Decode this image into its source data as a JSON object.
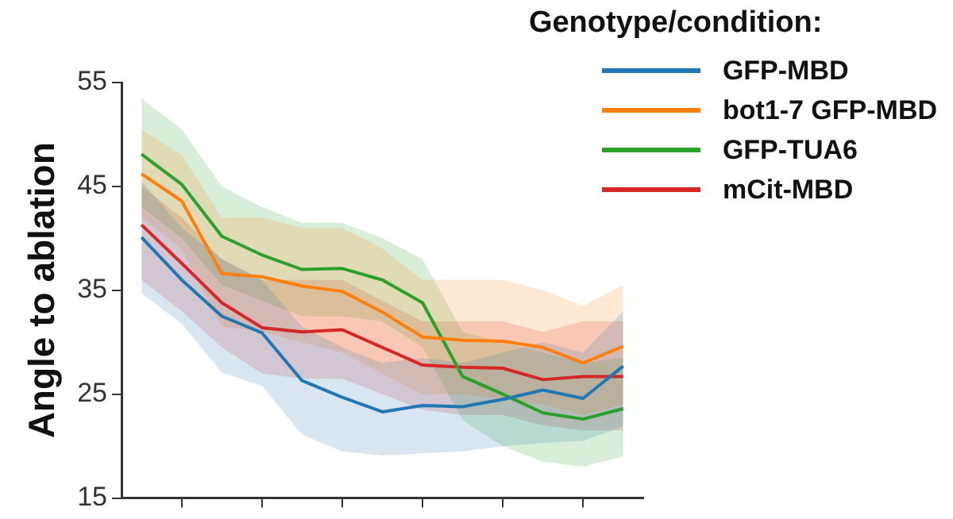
{
  "chart_data": {
    "type": "line",
    "ylabel": "Angle to ablation",
    "legend_title": "Genotype/condition:",
    "legend": "top right",
    "grid": false,
    "marker": "none",
    "line_style": "solid",
    "categories": [
      null,
      null,
      null,
      null,
      null,
      null,
      null,
      null,
      null,
      null,
      null,
      null,
      null
    ],
    "ylim": [
      15,
      55
    ],
    "yticks": [
      15,
      25,
      35,
      45,
      55
    ],
    "series": [
      {
        "name": "GFP-MBD",
        "color": "#1f77b4",
        "values": [
          40.1,
          36,
          32.5,
          30.9,
          26.3,
          24.7,
          23.3,
          23.9,
          23.8,
          24.5,
          25.4,
          24.6,
          27.7
        ],
        "lower": [
          34.7,
          31.8,
          27.1,
          25.8,
          21.1,
          19.5,
          19.1,
          19.3,
          19.5,
          20,
          20.3,
          20.5,
          21.9
        ],
        "upper": [
          45.5,
          41,
          38,
          36,
          31.5,
          29.5,
          28,
          28.5,
          28,
          29,
          30,
          29,
          33
        ]
      },
      {
        "name": "bot1-7 GFP-MBD",
        "color": "#ff7f0e",
        "values": [
          46.2,
          43.6,
          36.6,
          36.3,
          35.4,
          34.9,
          32.9,
          30.5,
          30.2,
          30.1,
          29.5,
          28,
          29.6
        ],
        "lower": [
          42,
          39,
          31.5,
          31,
          30,
          29,
          27,
          25,
          25,
          24.5,
          24,
          23,
          24
        ],
        "upper": [
          50.5,
          48,
          42,
          42,
          41,
          41,
          39,
          36,
          36,
          36,
          35,
          33.5,
          35.5
        ]
      },
      {
        "name": "GFP-TUA6",
        "color": "#2ca02c",
        "values": [
          48.1,
          45.2,
          40.2,
          38.4,
          37,
          37.1,
          36,
          33.8,
          26.7,
          25,
          23.2,
          22.6,
          23.6
        ],
        "lower": [
          43,
          40,
          35.5,
          34,
          32.5,
          32.5,
          32,
          29.5,
          22.5,
          20,
          18.5,
          18,
          19
        ],
        "upper": [
          53.5,
          50.5,
          45,
          43,
          41.5,
          41.5,
          40,
          38,
          31,
          30,
          29,
          28,
          28.5
        ]
      },
      {
        "name": "mCit-MBD",
        "color": "#d62728",
        "values": [
          41.3,
          37.6,
          33.8,
          31.4,
          31,
          31.2,
          29.5,
          27.8,
          27.6,
          27.5,
          26.4,
          26.7,
          26.7
        ],
        "lower": [
          36,
          33,
          29.5,
          27,
          26.5,
          26.5,
          25,
          23.5,
          23,
          23,
          22,
          21.5,
          21.5
        ],
        "upper": [
          45,
          42,
          38,
          36,
          36,
          36,
          34,
          32,
          32,
          32,
          31,
          32,
          32
        ]
      }
    ]
  }
}
